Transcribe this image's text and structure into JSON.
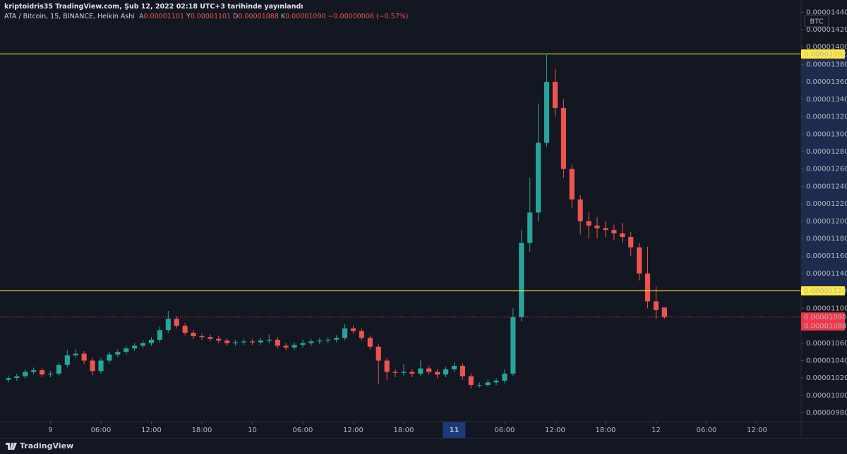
{
  "chart_data": {
    "type": "candlestick",
    "title": "kriptoidris35 TradingView.com, Şub 12, 2022 02:18 UTC+3 tarihinde yayınlandı",
    "subtitle": "ATA / Bitcoin, 15, BINANCE, Heikin Ashi",
    "legend_values": [
      {
        "key": "A",
        "value": "0.00001101"
      },
      {
        "key": "Y",
        "value": "0.00001101"
      },
      {
        "key": "D",
        "value": "0.00001088"
      },
      {
        "key": "K",
        "value": "0.00001090"
      }
    ],
    "change": "−0.00000006 (−0.57%)",
    "unit": "BTC",
    "brand": "TradingView",
    "up_color": "#26a69a",
    "down_color": "#ef5350",
    "x": [
      "8 19:00",
      "8 20:00",
      "8 21:00",
      "8 22:00",
      "8 23:00",
      "9 00:00",
      "9 01:00",
      "9 02:00",
      "9 03:00",
      "9 04:00",
      "9 05:00",
      "9 06:00",
      "9 07:00",
      "9 08:00",
      "9 09:00",
      "9 10:00",
      "9 11:00",
      "9 12:00",
      "9 13:00",
      "9 14:00",
      "9 15:00",
      "9 16:00",
      "9 17:00",
      "9 18:00",
      "9 19:00",
      "9 20:00",
      "9 21:00",
      "9 22:00",
      "9 23:00",
      "10 00:00",
      "10 01:00",
      "10 02:00",
      "10 03:00",
      "10 04:00",
      "10 05:00",
      "10 06:00",
      "10 07:00",
      "10 08:00",
      "10 09:00",
      "10 10:00",
      "10 11:00",
      "10 12:00",
      "10 13:00",
      "10 14:00",
      "10 15:00",
      "10 16:00",
      "10 17:00",
      "10 18:00",
      "10 19:00",
      "10 20:00",
      "10 21:00",
      "10 22:00",
      "10 23:00",
      "11 00:00",
      "11 01:00",
      "11 02:00",
      "11 03:00",
      "11 04:00",
      "11 05:00",
      "11 06:00",
      "11 07:00",
      "11 08:00",
      "11 09:00",
      "11 10:00",
      "11 11:00",
      "11 12:00",
      "11 13:00",
      "11 14:00",
      "11 15:00",
      "11 16:00",
      "11 17:00",
      "11 18:00",
      "11 19:00",
      "11 20:00",
      "11 21:00",
      "11 22:00",
      "11 23:00",
      "12 00:00",
      "12 01:00"
    ],
    "open": [
      1.018e-05,
      1.02e-05,
      1.022e-05,
      1.027e-05,
      1.029e-05,
      1.024e-05,
      1.025e-05,
      1.035e-05,
      1.046e-05,
      1.048e-05,
      1.04e-05,
      1.028e-05,
      1.04e-05,
      1.047e-05,
      1.05e-05,
      1.054e-05,
      1.057e-05,
      1.06e-05,
      1.064e-05,
      1.075e-05,
      1.088e-05,
      1.08e-05,
      1.072e-05,
      1.068e-05,
      1.067e-05,
      1.065e-05,
      1.063e-05,
      1.06e-05,
      1.061e-05,
      1.062e-05,
      1.061e-05,
      1.063e-05,
      1.064e-05,
      1.057e-05,
      1.055e-05,
      1.058e-05,
      1.06e-05,
      1.062e-05,
      1.063e-05,
      1.064e-05,
      1.066e-05,
      1.077e-05,
      1.074e-05,
      1.066e-05,
      1.056e-05,
      1.04e-05,
      1.027e-05,
      1.026e-05,
      1.027e-05,
      1.025e-05,
      1.031e-05,
      1.027e-05,
      1.024e-05,
      1.03e-05,
      1.034e-05,
      1.022e-05,
      1.012e-05,
      1.012e-05,
      1.015e-05,
      1.017e-05,
      1.025e-05,
      1.09e-05,
      1.175e-05,
      1.21e-05,
      1.29e-05,
      1.36e-05,
      1.33e-05,
      1.26e-05,
      1.225e-05,
      1.2e-05,
      1.195e-05,
      1.192e-05,
      1.19e-05,
      1.186e-05,
      1.182e-05,
      1.17e-05,
      1.14e-05,
      1.108e-05,
      1.101e-05
    ],
    "high": [
      1.023e-05,
      1.025e-05,
      1.03e-05,
      1.032e-05,
      1.032e-05,
      1.028e-05,
      1.038e-05,
      1.052e-05,
      1.053e-05,
      1.051e-05,
      1.043e-05,
      1.043e-05,
      1.05e-05,
      1.053e-05,
      1.057e-05,
      1.06e-05,
      1.063e-05,
      1.067e-05,
      1.079e-05,
      1.097e-05,
      1.091e-05,
      1.083e-05,
      1.075e-05,
      1.071e-05,
      1.07e-05,
      1.068e-05,
      1.066e-05,
      1.064e-05,
      1.065e-05,
      1.065e-05,
      1.066e-05,
      1.07e-05,
      1.067e-05,
      1.06e-05,
      1.061e-05,
      1.064e-05,
      1.065e-05,
      1.066e-05,
      1.067e-05,
      1.069e-05,
      1.082e-05,
      1.08e-05,
      1.077e-05,
      1.069e-05,
      1.059e-05,
      1.043e-05,
      1.03e-05,
      1.036e-05,
      1.03e-05,
      1.04e-05,
      1.034e-05,
      1.03e-05,
      1.033e-05,
      1.038e-05,
      1.037e-05,
      1.025e-05,
      1.015e-05,
      1.018e-05,
      1.02e-05,
      1.03e-05,
      1.1e-05,
      1.19e-05,
      1.25e-05,
      1.335e-05,
      1.391e-05,
      1.375e-05,
      1.34e-05,
      1.265e-05,
      1.23e-05,
      1.21e-05,
      1.205e-05,
      1.2e-05,
      1.196e-05,
      1.198e-05,
      1.188e-05,
      1.175e-05,
      1.171e-05,
      1.125e-05,
      1.101e-05
    ],
    "low": [
      1.015e-05,
      1.017e-05,
      1.019e-05,
      1.024e-05,
      1.021e-05,
      1.021e-05,
      1.022e-05,
      1.032e-05,
      1.043e-05,
      1.036e-05,
      1.023e-05,
      1.025e-05,
      1.037e-05,
      1.044e-05,
      1.047e-05,
      1.051e-05,
      1.054e-05,
      1.057e-05,
      1.061e-05,
      1.072e-05,
      1.077e-05,
      1.069e-05,
      1.065e-05,
      1.064e-05,
      1.062e-05,
      1.06e-05,
      1.057e-05,
      1.057e-05,
      1.058e-05,
      1.058e-05,
      1.058e-05,
      1.06e-05,
      1.054e-05,
      1.052e-05,
      1.052e-05,
      1.055e-05,
      1.057e-05,
      1.059e-05,
      1.06e-05,
      1.061e-05,
      1.063e-05,
      1.071e-05,
      1.063e-05,
      1.053e-05,
      1.013e-05,
      1.018e-05,
      1.021e-05,
      1.023e-05,
      1.021e-05,
      1.022e-05,
      1.024e-05,
      1.02e-05,
      1.021e-05,
      1.027e-05,
      1.018e-05,
      1.008e-05,
      1.009e-05,
      1.01e-05,
      1.012e-05,
      1.014e-05,
      1.022e-05,
      1.085e-05,
      1.165e-05,
      1.2e-05,
      1.285e-05,
      1.32e-05,
      1.25e-05,
      1.215e-05,
      1.185e-05,
      1.18e-05,
      1.18e-05,
      1.182e-05,
      1.178e-05,
      1.175e-05,
      1.16e-05,
      1.132e-05,
      1.1e-05,
      1.088e-05,
      1.088e-05
    ],
    "close": [
      1.02e-05,
      1.022e-05,
      1.027e-05,
      1.029e-05,
      1.024e-05,
      1.025e-05,
      1.035e-05,
      1.046e-05,
      1.048e-05,
      1.04e-05,
      1.028e-05,
      1.04e-05,
      1.047e-05,
      1.05e-05,
      1.054e-05,
      1.057e-05,
      1.06e-05,
      1.064e-05,
      1.075e-05,
      1.088e-05,
      1.08e-05,
      1.072e-05,
      1.068e-05,
      1.067e-05,
      1.065e-05,
      1.063e-05,
      1.06e-05,
      1.061e-05,
      1.062e-05,
      1.061e-05,
      1.063e-05,
      1.064e-05,
      1.057e-05,
      1.055e-05,
      1.058e-05,
      1.06e-05,
      1.062e-05,
      1.063e-05,
      1.064e-05,
      1.066e-05,
      1.077e-05,
      1.074e-05,
      1.066e-05,
      1.056e-05,
      1.04e-05,
      1.027e-05,
      1.026e-05,
      1.027e-05,
      1.025e-05,
      1.031e-05,
      1.027e-05,
      1.024e-05,
      1.03e-05,
      1.034e-05,
      1.022e-05,
      1.012e-05,
      1.012e-05,
      1.015e-05,
      1.017e-05,
      1.025e-05,
      1.09e-05,
      1.175e-05,
      1.21e-05,
      1.29e-05,
      1.36e-05,
      1.33e-05,
      1.26e-05,
      1.225e-05,
      1.2e-05,
      1.195e-05,
      1.192e-05,
      1.19e-05,
      1.186e-05,
      1.182e-05,
      1.17e-05,
      1.14e-05,
      1.108e-05,
      1.098e-05,
      1.09e-05
    ],
    "xlim": [
      "8 18:00",
      "12 17:15"
    ],
    "xticks": [
      {
        "value": "9 00:00",
        "label": "9"
      },
      {
        "value": "9 06:00",
        "label": "06:00"
      },
      {
        "value": "9 12:00",
        "label": "12:00"
      },
      {
        "value": "9 18:00",
        "label": "18:00"
      },
      {
        "value": "10 00:00",
        "label": "10"
      },
      {
        "value": "10 06:00",
        "label": "06:00"
      },
      {
        "value": "10 12:00",
        "label": "12:00"
      },
      {
        "value": "10 18:00",
        "label": "18:00"
      },
      {
        "value": "11 00:00",
        "label": "11",
        "highlight": true
      },
      {
        "value": "11 06:00",
        "label": "06:00"
      },
      {
        "value": "11 12:00",
        "label": "12:00"
      },
      {
        "value": "11 18:00",
        "label": "18:00"
      },
      {
        "value": "12 00:00",
        "label": "12"
      },
      {
        "value": "12 06:00",
        "label": "06:00"
      },
      {
        "value": "12 12:00",
        "label": "12:00"
      }
    ],
    "ylim": [
      9.7e-06,
      1.454e-05
    ],
    "yticks": [
      {
        "value": 1.44e-05,
        "label": "0.00001440"
      },
      {
        "value": 1.42e-05,
        "label": "0.00001420"
      },
      {
        "value": 1.4e-05,
        "label": "0.00001400"
      },
      {
        "value": 1.38e-05,
        "label": "0.00001380"
      },
      {
        "value": 1.36e-05,
        "label": "0.00001360"
      },
      {
        "value": 1.34e-05,
        "label": "0.00001340"
      },
      {
        "value": 1.32e-05,
        "label": "0.00001320"
      },
      {
        "value": 1.3e-05,
        "label": "0.00001300"
      },
      {
        "value": 1.28e-05,
        "label": "0.00001280"
      },
      {
        "value": 1.26e-05,
        "label": "0.00001260"
      },
      {
        "value": 1.24e-05,
        "label": "0.00001240"
      },
      {
        "value": 1.22e-05,
        "label": "0.00001220"
      },
      {
        "value": 1.2e-05,
        "label": "0.00001200"
      },
      {
        "value": 1.18e-05,
        "label": "0.00001180"
      },
      {
        "value": 1.16e-05,
        "label": "0.00001160"
      },
      {
        "value": 1.14e-05,
        "label": "0.00001140"
      },
      {
        "value": 1.1e-05,
        "label": "0.00001100"
      },
      {
        "value": 1.06e-05,
        "label": "0.00001060"
      },
      {
        "value": 1.04e-05,
        "label": "0.00001040"
      },
      {
        "value": 1.02e-05,
        "label": "0.00001020"
      },
      {
        "value": 1e-05,
        "label": "0.00001000"
      },
      {
        "value": 9.8e-06,
        "label": "0.00000980"
      }
    ],
    "hlines": [
      {
        "value": 1.392e-05,
        "label": "0.00001392",
        "color": "#ffeb3b"
      },
      {
        "value": 1.12e-05,
        "label": "0.00001120",
        "color": "#ffeb3b"
      }
    ],
    "price_labels": [
      {
        "value": 1.09e-05,
        "label": "0.00001090",
        "color": "#f23645",
        "dotted_line": true
      },
      {
        "value": 1.088e-05,
        "label": "0.00001088",
        "color": "#f23645"
      }
    ]
  }
}
